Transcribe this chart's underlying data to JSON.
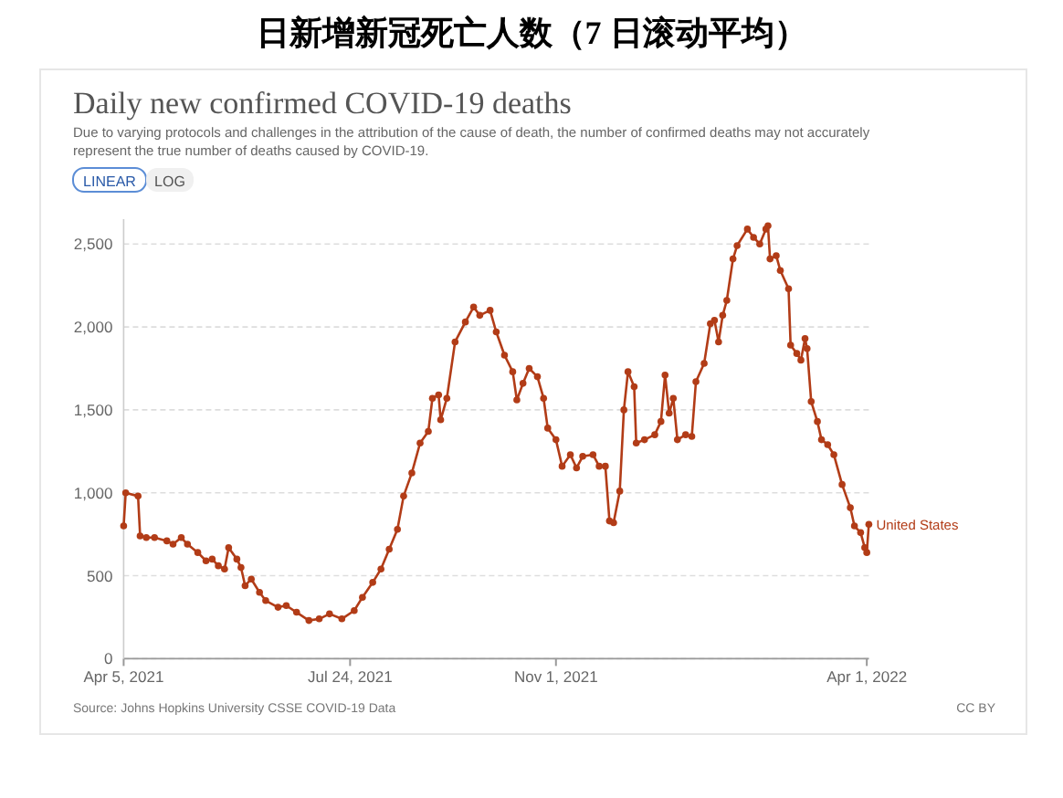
{
  "chart_data": {
    "type": "line",
    "title": "日新增新冠死亡人数（7 日滚动平均）",
    "subtitle": "Daily new confirmed COVID-19 deaths",
    "annotations": [
      "Due to varying protocols and challenges in the attribution of the cause of death, the number of confirmed deaths may not accurately represent the true number of deaths caused by COVID-19.",
      "LINEAR",
      "LOG",
      "Source: Johns Hopkins University CSSE COVID-19 Data",
      "CC BY"
    ],
    "x": [
      "2021-04-05",
      "2021-04-06",
      "2021-04-12",
      "2021-04-13",
      "2021-04-16",
      "2021-04-20",
      "2021-04-26",
      "2021-04-29",
      "2021-05-03",
      "2021-05-06",
      "2021-05-11",
      "2021-05-15",
      "2021-05-18",
      "2021-05-21",
      "2021-05-24",
      "2021-05-26",
      "2021-05-30",
      "2021-06-01",
      "2021-06-03",
      "2021-06-06",
      "2021-06-10",
      "2021-06-13",
      "2021-06-19",
      "2021-06-23",
      "2021-06-28",
      "2021-07-04",
      "2021-07-09",
      "2021-07-14",
      "2021-07-20",
      "2021-07-26",
      "2021-07-30",
      "2021-08-04",
      "2021-08-08",
      "2021-08-12",
      "2021-08-16",
      "2021-08-19",
      "2021-08-23",
      "2021-08-27",
      "2021-08-31",
      "2021-09-02",
      "2021-09-05",
      "2021-09-06",
      "2021-09-09",
      "2021-09-13",
      "2021-09-18",
      "2021-09-22",
      "2021-09-25",
      "2021-09-30",
      "2021-10-03",
      "2021-10-07",
      "2021-10-11",
      "2021-10-13",
      "2021-10-16",
      "2021-10-19",
      "2021-10-23",
      "2021-10-26",
      "2021-10-28",
      "2021-11-01",
      "2021-11-04",
      "2021-11-08",
      "2021-11-11",
      "2021-11-14",
      "2021-11-19",
      "2021-11-22",
      "2021-11-25",
      "2021-11-27",
      "2021-11-29",
      "2021-12-02",
      "2021-12-04",
      "2021-12-06",
      "2021-12-09",
      "2021-12-10",
      "2021-12-14",
      "2021-12-19",
      "2021-12-22",
      "2021-12-24",
      "2021-12-26",
      "2021-12-28",
      "2021-12-30",
      "2022-01-03",
      "2022-01-06",
      "2022-01-08",
      "2022-01-12",
      "2022-01-15",
      "2022-01-17",
      "2022-01-19",
      "2022-01-21",
      "2022-01-23",
      "2022-01-26",
      "2022-01-28",
      "2022-02-02",
      "2022-02-05",
      "2022-02-08",
      "2022-02-11",
      "2022-02-12",
      "2022-02-13",
      "2022-02-16",
      "2022-02-18",
      "2022-02-22",
      "2022-02-23",
      "2022-02-26",
      "2022-02-28",
      "2022-03-02",
      "2022-03-03",
      "2022-03-05",
      "2022-03-08",
      "2022-03-10",
      "2022-03-13",
      "2022-03-16",
      "2022-03-20",
      "2022-03-24",
      "2022-03-26",
      "2022-03-29",
      "2022-03-31",
      "2022-04-01",
      "2022-04-02"
    ],
    "series": [
      {
        "name": "United States",
        "color": "#b23c17",
        "values": [
          800,
          1000,
          980,
          740,
          730,
          730,
          710,
          690,
          730,
          690,
          640,
          590,
          600,
          560,
          540,
          670,
          600,
          550,
          440,
          480,
          400,
          350,
          310,
          320,
          280,
          230,
          240,
          270,
          240,
          290,
          370,
          460,
          540,
          660,
          780,
          980,
          1120,
          1300,
          1370,
          1570,
          1590,
          1440,
          1570,
          1910,
          2030,
          2120,
          2070,
          2100,
          1970,
          1830,
          1730,
          1560,
          1660,
          1750,
          1700,
          1570,
          1390,
          1320,
          1160,
          1230,
          1150,
          1220,
          1230,
          1160,
          1160,
          830,
          820,
          1010,
          1500,
          1730,
          1640,
          1300,
          1320,
          1350,
          1430,
          1710,
          1480,
          1570,
          1320,
          1350,
          1340,
          1670,
          1780,
          2020,
          2040,
          1910,
          2070,
          2160,
          2410,
          2490,
          2590,
          2540,
          2500,
          2590,
          2610,
          2410,
          2430,
          2340,
          2230,
          1890,
          1840,
          1800,
          1930,
          1870,
          1550,
          1430,
          1320,
          1290,
          1230,
          1050,
          910,
          800,
          760,
          670,
          640,
          810
        ]
      }
    ],
    "xlim": [
      "2021-04-05",
      "2022-04-02"
    ],
    "xticks": [
      {
        "value": "2021-04-05",
        "label": "Apr 5, 2021"
      },
      {
        "value": "2021-07-24",
        "label": "Jul 24, 2021"
      },
      {
        "value": "2021-11-01",
        "label": "Nov 1, 2021"
      },
      {
        "value": "2022-04-01",
        "label": "Apr 1, 2022"
      }
    ],
    "ylim": [
      0,
      2650
    ],
    "yticks": [
      0,
      500,
      {
        "value": 1000,
        "label": "1,000"
      },
      {
        "value": 1500,
        "label": "1,500"
      },
      {
        "value": 2000,
        "label": "2,000"
      },
      {
        "value": 2500,
        "label": "2,500"
      }
    ],
    "grid": "y",
    "marker": "circle",
    "line_style": "solid",
    "legend": false
  }
}
